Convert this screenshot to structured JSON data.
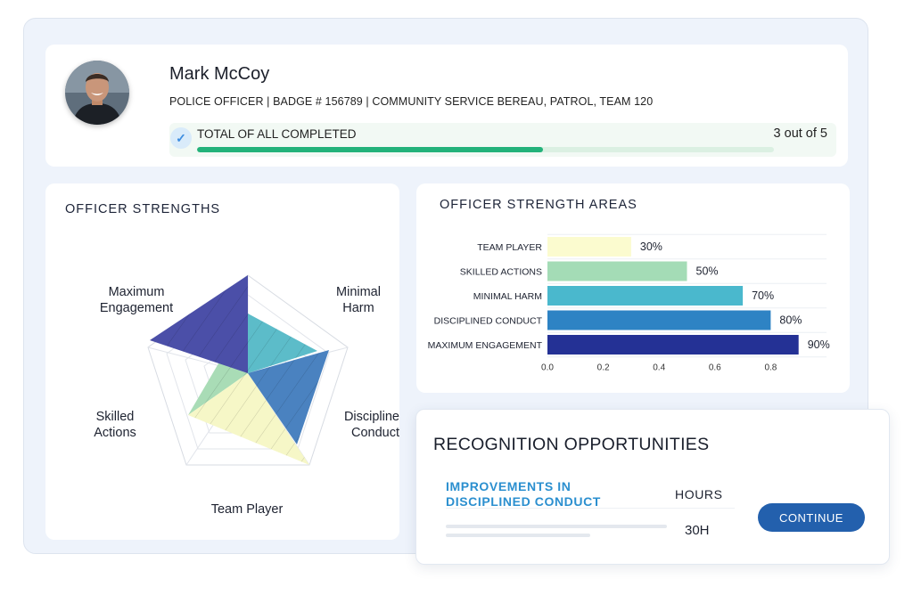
{
  "profile": {
    "name": "Mark McCoy",
    "subtitle": "POLICE OFFICER | BADGE # 156789 | COMMUNITY SERVICE BEREAU, PATROL, TEAM 120",
    "progress_label": "TOTAL OF ALL COMPLETED",
    "progress_count": "3 out of 5",
    "progress_fraction": 0.6,
    "check_icon": "check-icon"
  },
  "strengths": {
    "title": "OFFICER STRENGTHS",
    "axes": [
      "Maximum Engagement",
      "Minimal Harm",
      "Disciplined Conduct",
      "Team Player",
      "Skilled Actions"
    ]
  },
  "areas": {
    "title": "OFFICER STRENGTH AREAS"
  },
  "chart_data": {
    "type": "bar",
    "orientation": "horizontal",
    "categories": [
      "TEAM PLAYER",
      "SKILLED ACTIONS",
      "MINIMAL HARM",
      "DISCIPLINED CONDUCT",
      "MAXIMUM ENGAGEMENT"
    ],
    "values": [
      0.3,
      0.5,
      0.7,
      0.8,
      0.9
    ],
    "data_labels": [
      "30%",
      "50%",
      "70%",
      "80%",
      "90%"
    ],
    "colors": [
      "#fbfbcf",
      "#a4dcb6",
      "#4ab8cd",
      "#2e83c4",
      "#243195"
    ],
    "xticks": [
      "0.0",
      "0.2",
      "0.4",
      "0.6",
      "0.8"
    ],
    "xlim": [
      0,
      1
    ],
    "grid": true
  },
  "recognition": {
    "title": "RECOGNITION OPPORTUNITIES",
    "item": "IMPROVEMENTS IN DISCIPLINED CONDUCT",
    "hours_label": "HOURS",
    "hours_value": "30H",
    "continue_label": "CONTINUE"
  },
  "colors": {
    "accent": "#2360ad",
    "progress": "#23b27a",
    "highlight_text": "#2b8fcf"
  }
}
